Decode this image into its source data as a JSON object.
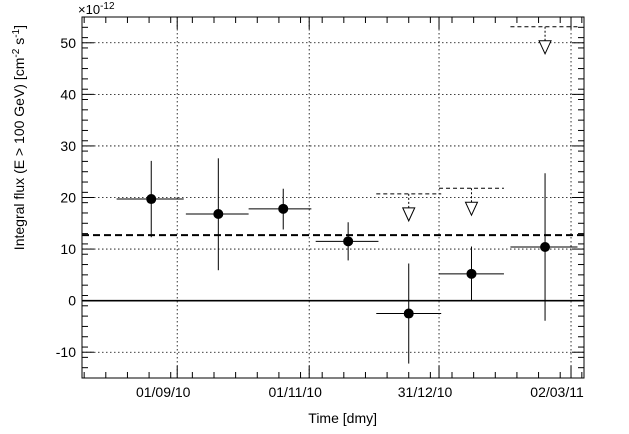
{
  "chart_data": {
    "type": "scatter",
    "title": "",
    "xlabel": "Time [dmy]",
    "ylabel": "Integral flux (E > 100 GeV) [cm⁻² s⁻¹]",
    "y_multiplier_label": "×10⁻¹²",
    "y_multiplier": 1e-12,
    "xlim": [
      "2010-07-19",
      "2011-03-08"
    ],
    "ylim": [
      -15,
      55
    ],
    "grid": true,
    "x_ticks": [
      {
        "date": "2010-09-01",
        "label": "01/09/10"
      },
      {
        "date": "2010-11-01",
        "label": "01/11/10"
      },
      {
        "date": "2010-12-31",
        "label": "31/12/10"
      },
      {
        "date": "2011-03-02",
        "label": "02/03/11"
      }
    ],
    "y_ticks": [
      -10,
      0,
      10,
      20,
      30,
      40,
      50
    ],
    "reference_lines": [
      {
        "name": "zero",
        "y": 0
      },
      {
        "name": "mean flux",
        "y": 12.7
      }
    ],
    "measurements": [
      {
        "date": "2010-08-20",
        "start": "2010-08-04",
        "end": "2010-09-04",
        "y": 19.7,
        "y_low": 12.3,
        "y_high": 27.1
      },
      {
        "date": "2010-09-20",
        "start": "2010-09-05",
        "end": "2010-10-04",
        "y": 16.8,
        "y_low": 5.9,
        "y_high": 27.6
      },
      {
        "date": "2010-10-20",
        "start": "2010-10-04",
        "end": "2010-11-02",
        "y": 17.8,
        "y_low": 13.8,
        "y_high": 21.7
      },
      {
        "date": "2010-11-19",
        "start": "2010-11-04",
        "end": "2010-12-03",
        "y": 11.5,
        "y_low": 7.8,
        "y_high": 15.2
      },
      {
        "date": "2010-12-17",
        "start": "2010-12-02",
        "end": "2011-01-01",
        "y": -2.5,
        "y_low": -12.2,
        "y_high": 7.2
      },
      {
        "date": "2011-01-15",
        "start": "2010-12-31",
        "end": "2011-01-30",
        "y": 5.2,
        "y_low": -0.1,
        "y_high": 10.5
      },
      {
        "date": "2011-02-18",
        "start": "2011-02-02",
        "end": "2011-03-05",
        "y": 10.4,
        "y_low": -3.9,
        "y_high": 24.7
      }
    ],
    "upper_limits": [
      {
        "date": "2010-12-17",
        "start": "2010-12-02",
        "end": "2011-01-01",
        "y": 20.7
      },
      {
        "date": "2011-01-15",
        "start": "2010-12-31",
        "end": "2011-01-30",
        "y": 21.8
      },
      {
        "date": "2011-02-18",
        "start": "2011-02-02",
        "end": "2011-03-05",
        "y": 53.1
      }
    ]
  }
}
